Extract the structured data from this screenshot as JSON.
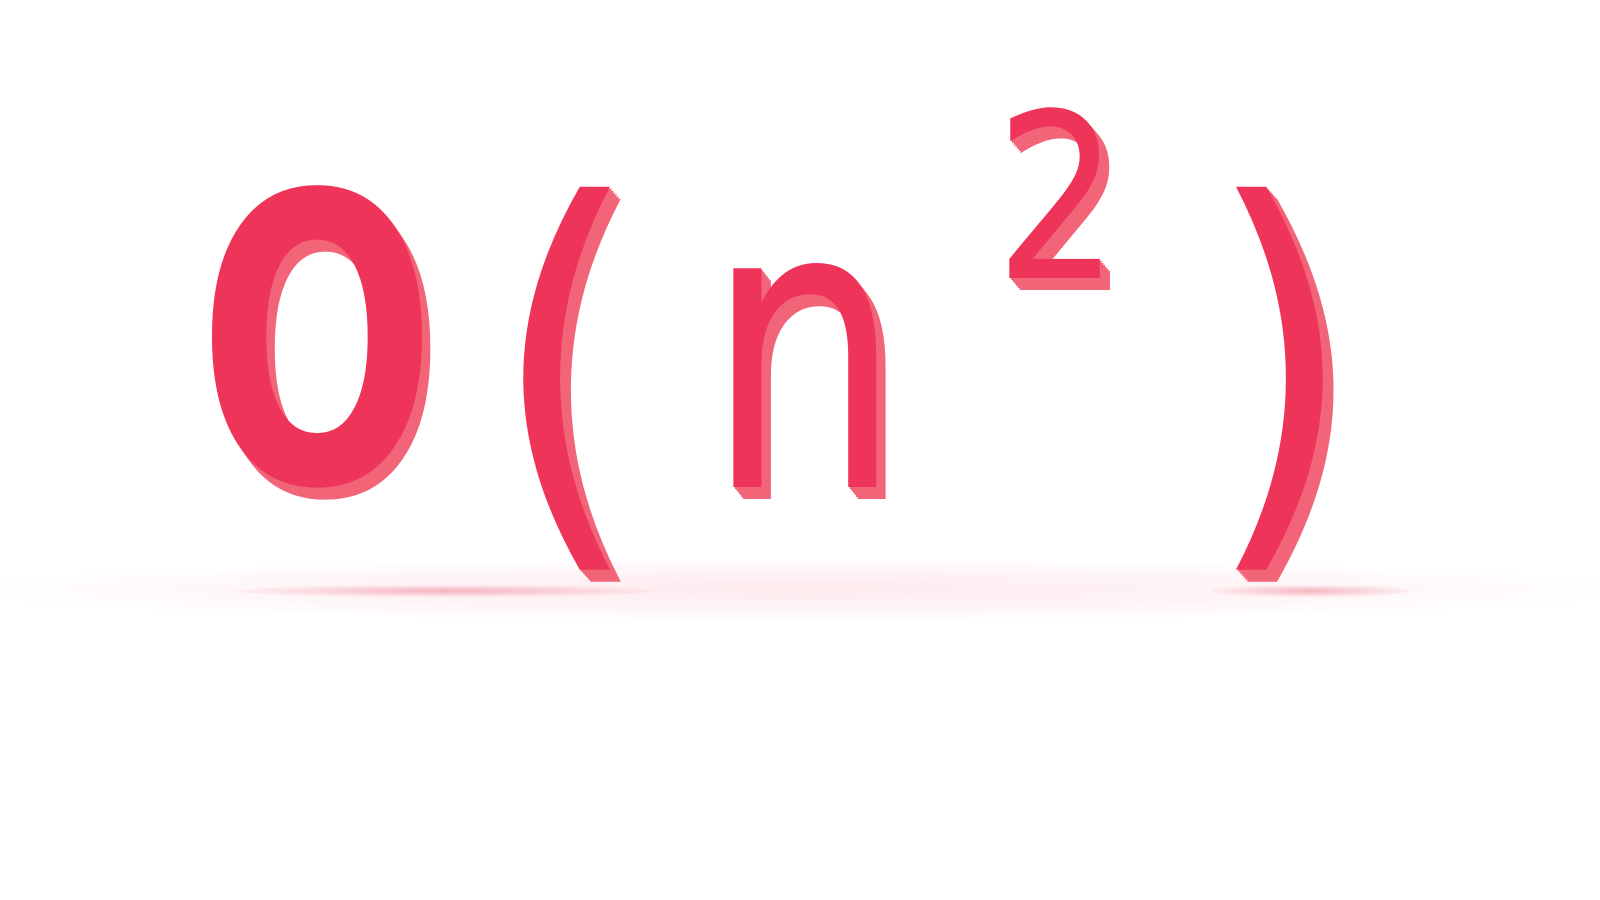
{
  "expression": {
    "big_o": "O",
    "open_paren": "(",
    "variable": "n",
    "exponent": "2",
    "close_paren": ")"
  },
  "colors": {
    "face": "#ee3559",
    "side": "#f26478",
    "background": "#ffffff"
  }
}
